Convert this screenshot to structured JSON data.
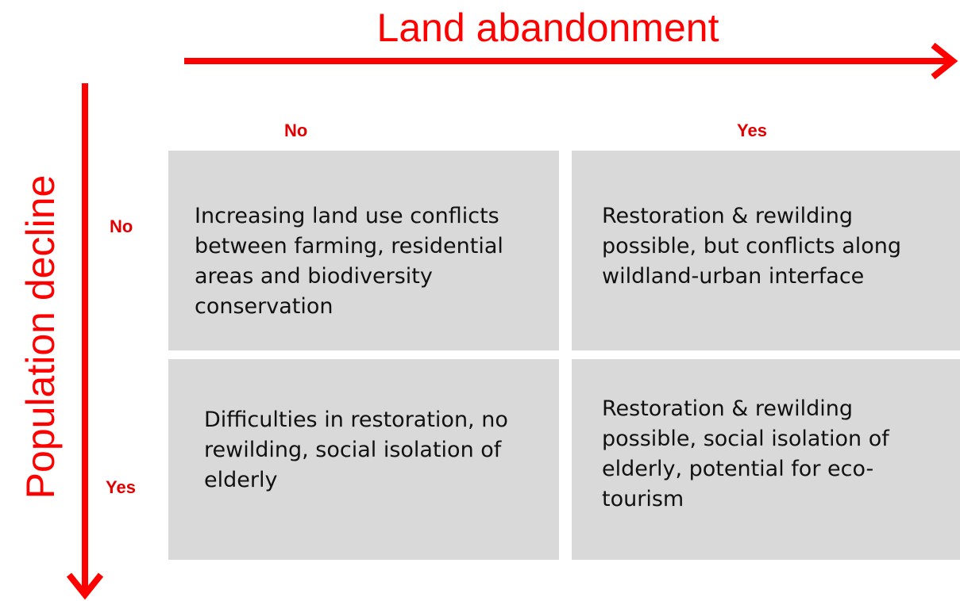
{
  "x_axis": {
    "title": "Land abandonment",
    "labels": [
      "No",
      "Yes"
    ]
  },
  "y_axis": {
    "title": "Population decline",
    "labels": [
      "No",
      "Yes"
    ]
  },
  "cells": [
    [
      "Increasing land use conflicts between farming, residential areas and biodiversity conservation",
      "Restoration & rewilding possible, but conflicts along wildland-urban interface"
    ],
    [
      "Difficulties in restoration, no rewilding, social isolation of elderly",
      "Restoration & rewilding possible, social isolation of elderly, potential for eco-tourism"
    ]
  ]
}
